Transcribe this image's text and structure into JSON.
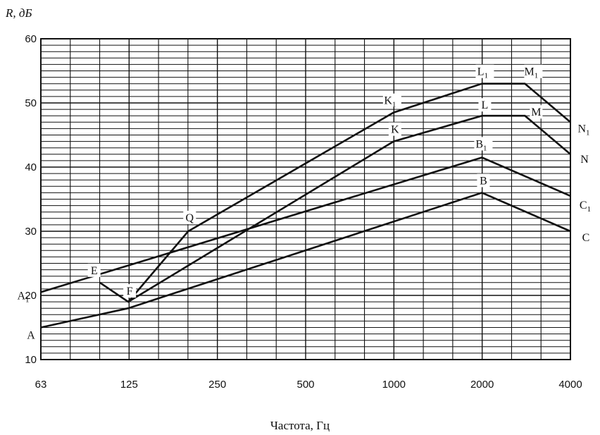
{
  "chart_data": {
    "type": "line",
    "title": "",
    "ylabel": "R,  дБ",
    "xlabel": "Частота,  Гц",
    "x_scale": "log2",
    "xlim": [
      63,
      4000
    ],
    "ylim": [
      10,
      60
    ],
    "x_tick_labels": [
      "63",
      "125",
      "250",
      "500",
      "1000",
      "2000",
      "4000"
    ],
    "y_tick_labels": [
      "10",
      "20",
      "30",
      "40",
      "50",
      "60"
    ],
    "grid": true,
    "series": [
      {
        "points": [
          {
            "label": "A",
            "x": 63,
            "y": 15
          },
          {
            "label": "",
            "x": 125,
            "y": 18
          },
          {
            "label": "B",
            "x": 2000,
            "y": 36
          },
          {
            "label": "C",
            "x": 4000,
            "y": 30
          }
        ]
      },
      {
        "points": [
          {
            "label": "A1",
            "x": 63,
            "y": 20.5
          },
          {
            "label": "B1",
            "x": 2000,
            "y": 41.5
          },
          {
            "label": "C1",
            "x": 4000,
            "y": 35.5
          }
        ]
      },
      {
        "points": [
          {
            "label": "E",
            "x": 100,
            "y": 22
          },
          {
            "label": "F",
            "x": 125,
            "y": 19
          },
          {
            "label": "K",
            "x": 1000,
            "y": 44
          },
          {
            "label": "L",
            "x": 2000,
            "y": 48
          },
          {
            "label": "M",
            "x": 2800,
            "y": 48
          },
          {
            "label": "N",
            "x": 4000,
            "y": 42
          }
        ]
      },
      {
        "points": [
          {
            "label": "",
            "x": 125,
            "y": 19
          },
          {
            "label": "Q",
            "x": 200,
            "y": 30
          },
          {
            "label": "K1",
            "x": 1000,
            "y": 48.5
          },
          {
            "label": "L1",
            "x": 2000,
            "y": 53
          },
          {
            "label": "M1",
            "x": 2800,
            "y": 53
          },
          {
            "label": "N1",
            "x": 4000,
            "y": 47
          }
        ]
      }
    ]
  }
}
